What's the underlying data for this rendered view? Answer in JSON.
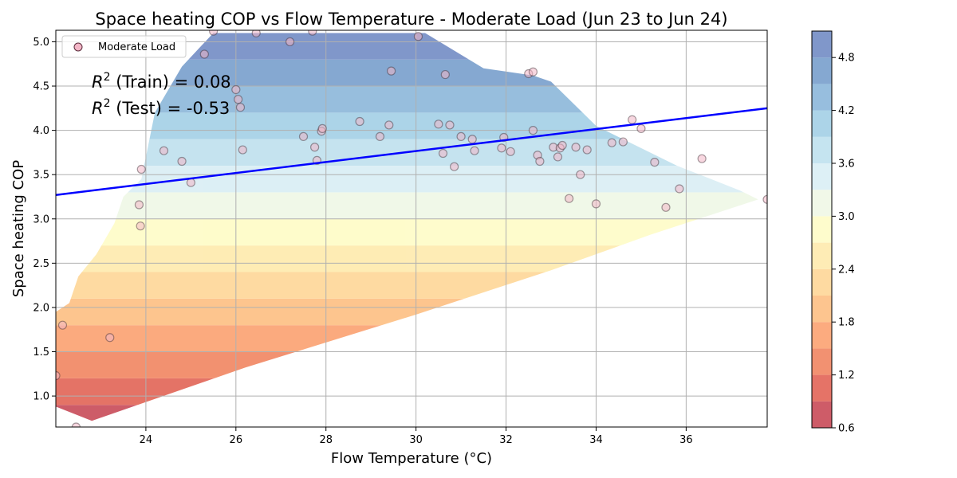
{
  "chart_data": {
    "type": "scatter",
    "title": "Space heating COP vs Flow Temperature - Moderate Load (Jun 23 to Jun 24)",
    "xlabel": "Flow Temperature (°C)",
    "ylabel": "Space heating COP",
    "xlim": [
      22.0,
      37.8
    ],
    "ylim": [
      0.65,
      5.13
    ],
    "xticks": [
      24,
      26,
      28,
      30,
      32,
      34,
      36
    ],
    "yticks": [
      1.0,
      1.5,
      2.0,
      2.5,
      3.0,
      3.5,
      4.0,
      4.5,
      5.0
    ],
    "grid": true,
    "legend": {
      "position": "top-left",
      "entries": [
        "Moderate Load"
      ]
    },
    "annotations": {
      "r2_train_prefix": "R",
      "r2_train_sup": "2",
      "r2_train_rest": " (Train) = 0.08",
      "r2_test_prefix": "R",
      "r2_test_sup": "2",
      "r2_test_rest": " (Test) = -0.53"
    },
    "regression_line": {
      "x": [
        22.0,
        37.8
      ],
      "y": [
        3.27,
        4.25
      ],
      "color": "#0000ff"
    },
    "colorbar": {
      "min": 0.6,
      "max": 5.1,
      "ticks": [
        0.6,
        1.2,
        1.8,
        2.4,
        3.0,
        3.6,
        4.2,
        4.8
      ],
      "levels": [
        0.6,
        0.9,
        1.2,
        1.5,
        1.8,
        2.1,
        2.4,
        2.7,
        3.0,
        3.3,
        3.6,
        3.9,
        4.2,
        4.5,
        4.8,
        5.1
      ],
      "colors": [
        "#c5404e",
        "#e05b4c",
        "#f07e58",
        "#fb9c68",
        "#fdbb7b",
        "#fed491",
        "#fee9a8",
        "#fefcc3",
        "#eef7e4",
        "#d7edf4",
        "#bbdfed",
        "#9ecde4",
        "#85b3d8",
        "#7099c9",
        "#6a85c1"
      ]
    },
    "surface_hull": [
      [
        22.0,
        0.88
      ],
      [
        22.8,
        0.72
      ],
      [
        26.2,
        1.32
      ],
      [
        30.0,
        1.92
      ],
      [
        33.0,
        2.42
      ],
      [
        35.2,
        2.82
      ],
      [
        37.6,
        3.22
      ],
      [
        37.2,
        3.32
      ],
      [
        35.8,
        3.6
      ],
      [
        34.0,
        4.05
      ],
      [
        33.0,
        4.55
      ],
      [
        32.6,
        4.62
      ],
      [
        31.5,
        4.7
      ],
      [
        30.2,
        5.1
      ],
      [
        25.5,
        5.1
      ],
      [
        24.8,
        4.72
      ],
      [
        24.2,
        4.2
      ],
      [
        23.9,
        3.45
      ],
      [
        23.5,
        3.25
      ],
      [
        23.3,
        2.95
      ],
      [
        22.9,
        2.6
      ],
      [
        22.5,
        2.35
      ],
      [
        22.3,
        2.05
      ],
      [
        22.0,
        1.95
      ]
    ],
    "series": [
      {
        "name": "Moderate Load",
        "color": "#f3b6c7",
        "points": [
          [
            22.0,
            1.23
          ],
          [
            22.15,
            1.8
          ],
          [
            22.45,
            0.65
          ],
          [
            23.2,
            1.66
          ],
          [
            23.85,
            3.16
          ],
          [
            23.88,
            2.92
          ],
          [
            23.9,
            3.56
          ],
          [
            24.4,
            3.77
          ],
          [
            24.8,
            3.65
          ],
          [
            25.0,
            3.41
          ],
          [
            25.3,
            4.86
          ],
          [
            25.5,
            5.12
          ],
          [
            26.0,
            4.46
          ],
          [
            26.05,
            4.35
          ],
          [
            26.1,
            4.26
          ],
          [
            26.15,
            3.78
          ],
          [
            26.45,
            5.1
          ],
          [
            27.2,
            5.0
          ],
          [
            27.5,
            3.93
          ],
          [
            27.7,
            5.12
          ],
          [
            27.75,
            3.81
          ],
          [
            27.8,
            3.66
          ],
          [
            27.9,
            3.99
          ],
          [
            27.92,
            4.02
          ],
          [
            28.75,
            4.1
          ],
          [
            29.2,
            3.93
          ],
          [
            29.4,
            4.06
          ],
          [
            29.45,
            4.67
          ],
          [
            30.05,
            5.06
          ],
          [
            30.5,
            4.07
          ],
          [
            30.6,
            3.74
          ],
          [
            30.65,
            4.63
          ],
          [
            30.75,
            4.06
          ],
          [
            30.85,
            3.59
          ],
          [
            31.0,
            3.93
          ],
          [
            31.25,
            3.9
          ],
          [
            31.3,
            3.77
          ],
          [
            31.9,
            3.8
          ],
          [
            31.95,
            3.92
          ],
          [
            32.1,
            3.76
          ],
          [
            32.5,
            4.64
          ],
          [
            32.6,
            4.66
          ],
          [
            32.6,
            4.0
          ],
          [
            32.7,
            3.72
          ],
          [
            32.75,
            3.65
          ],
          [
            33.05,
            3.81
          ],
          [
            33.15,
            3.7
          ],
          [
            33.2,
            3.8
          ],
          [
            33.25,
            3.83
          ],
          [
            33.4,
            3.23
          ],
          [
            33.55,
            3.81
          ],
          [
            33.65,
            3.5
          ],
          [
            33.8,
            3.78
          ],
          [
            34.0,
            3.17
          ],
          [
            34.35,
            3.86
          ],
          [
            34.6,
            3.87
          ],
          [
            34.8,
            4.12
          ],
          [
            35.0,
            4.02
          ],
          [
            35.3,
            3.64
          ],
          [
            35.55,
            3.13
          ],
          [
            35.85,
            3.34
          ],
          [
            36.35,
            3.68
          ],
          [
            37.8,
            3.22
          ]
        ]
      }
    ]
  }
}
